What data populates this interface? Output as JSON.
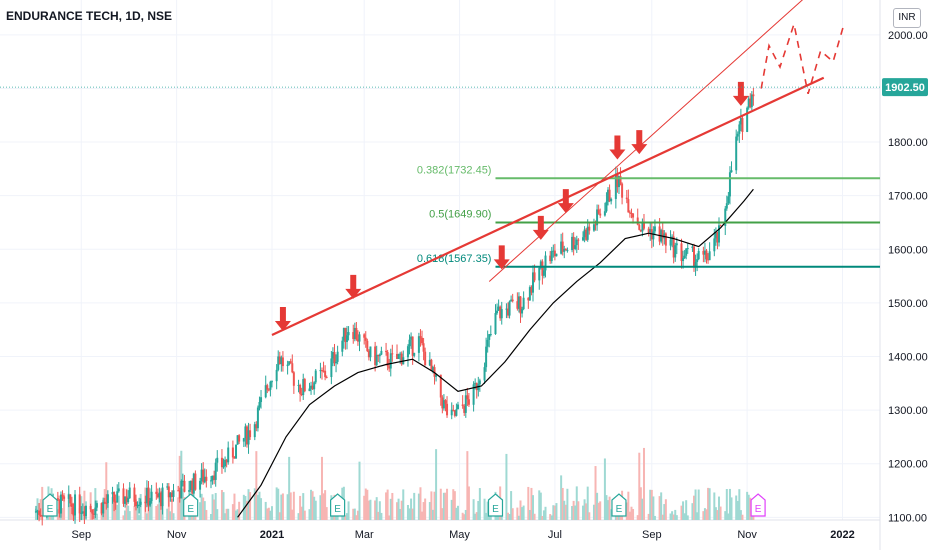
{
  "header": {
    "title": "ENDURANCE TECH, 1D, NSE",
    "currency": "INR"
  },
  "colors": {
    "up": "#26a69a",
    "down": "#ef5350",
    "arrow": "#e53935",
    "trendline": "#e53935",
    "fib_0382": "#66bb6a",
    "fib_05": "#43a047",
    "fib_0618": "#00897b",
    "moving_average": "#000000",
    "price_badge": "#26a69a"
  },
  "chart_data": {
    "type": "candlestick",
    "symbol": "ENDURANCE TECH",
    "interval": "1D",
    "exchange": "NSE",
    "last_price": "1902.50",
    "x_ticks": [
      "Sep",
      "Nov",
      "2021",
      "Mar",
      "May",
      "Jul",
      "Sep",
      "Nov",
      "2022"
    ],
    "y_ticks": [
      "2000.00",
      "1900.00",
      "1800.00",
      "1700.00",
      "1600.00",
      "1500.00",
      "1400.00",
      "1300.00",
      "1200.00",
      "1100.00"
    ],
    "ylim": [
      1095,
      2065
    ],
    "fib_levels": [
      {
        "label": "0.382(1732.45)",
        "ratio": 0.382,
        "price": 1732.45
      },
      {
        "label": "0.5(1649.90)",
        "ratio": 0.5,
        "price": 1649.9
      },
      {
        "label": "0.618(1567.35)",
        "ratio": 0.618,
        "price": 1567.35
      }
    ],
    "trendline": {
      "start": [
        "2021-01-01",
        1440
      ],
      "end": [
        "2021-12-20",
        1920
      ]
    },
    "channel_line": {
      "start": [
        "2021-05-20",
        1540
      ],
      "end": [
        "2021-12-12",
        2080
      ]
    },
    "arrow_markers": [
      {
        "date": "2021-01-08",
        "price": 1440
      },
      {
        "date": "2021-02-22",
        "price": 1500
      },
      {
        "date": "2021-05-28",
        "price": 1555
      },
      {
        "date": "2021-06-22",
        "price": 1610
      },
      {
        "date": "2021-07-08",
        "price": 1660
      },
      {
        "date": "2021-08-10",
        "price": 1760
      },
      {
        "date": "2021-08-24",
        "price": 1770
      },
      {
        "date": "2021-10-28",
        "price": 1860
      }
    ],
    "earnings_markers": [
      "2020-08-12",
      "2020-11-10",
      "2021-02-12",
      "2021-05-24",
      "2021-08-11",
      "2021-11-08"
    ],
    "projection_path": [
      [
        "2021-11-10",
        1900
      ],
      [
        "2021-11-15",
        1980
      ],
      [
        "2021-11-22",
        1940
      ],
      [
        "2021-12-01",
        2020
      ],
      [
        "2021-12-10",
        1890
      ],
      [
        "2021-12-18",
        1970
      ],
      [
        "2021-12-26",
        1950
      ],
      [
        "2022-01-02",
        2020
      ]
    ],
    "price_series": [
      [
        "2020-08-01",
        1110
      ],
      [
        "2020-08-20",
        1125
      ],
      [
        "2020-09-10",
        1120
      ],
      [
        "2020-10-01",
        1140
      ],
      [
        "2020-10-20",
        1135
      ],
      [
        "2020-11-10",
        1160
      ],
      [
        "2020-12-01",
        1200
      ],
      [
        "2020-12-20",
        1270
      ],
      [
        "2021-01-05",
        1400
      ],
      [
        "2021-01-20",
        1340
      ],
      [
        "2021-02-05",
        1370
      ],
      [
        "2021-02-20",
        1460
      ],
      [
        "2021-03-05",
        1400
      ],
      [
        "2021-03-20",
        1390
      ],
      [
        "2021-04-05",
        1430
      ],
      [
        "2021-04-25",
        1280
      ],
      [
        "2021-05-10",
        1330
      ],
      [
        "2021-05-25",
        1480
      ],
      [
        "2021-06-10",
        1500
      ],
      [
        "2021-06-25",
        1580
      ],
      [
        "2021-07-10",
        1610
      ],
      [
        "2021-07-25",
        1640
      ],
      [
        "2021-08-10",
        1730
      ],
      [
        "2021-08-25",
        1640
      ],
      [
        "2021-09-05",
        1630
      ],
      [
        "2021-09-20",
        1590
      ],
      [
        "2021-10-05",
        1580
      ],
      [
        "2021-10-15",
        1630
      ],
      [
        "2021-10-25",
        1800
      ],
      [
        "2021-11-05",
        1902.5
      ]
    ],
    "moving_average": [
      [
        "2020-12-10",
        1100
      ],
      [
        "2020-12-25",
        1160
      ],
      [
        "2021-01-10",
        1250
      ],
      [
        "2021-01-25",
        1310
      ],
      [
        "2021-02-10",
        1345
      ],
      [
        "2021-02-25",
        1370
      ],
      [
        "2021-03-15",
        1385
      ],
      [
        "2021-04-01",
        1395
      ],
      [
        "2021-04-15",
        1370
      ],
      [
        "2021-04-30",
        1335
      ],
      [
        "2021-05-15",
        1345
      ],
      [
        "2021-05-30",
        1390
      ],
      [
        "2021-06-15",
        1450
      ],
      [
        "2021-06-30",
        1500
      ],
      [
        "2021-07-15",
        1540
      ],
      [
        "2021-07-30",
        1575
      ],
      [
        "2021-08-15",
        1620
      ],
      [
        "2021-08-30",
        1630
      ],
      [
        "2021-09-15",
        1620
      ],
      [
        "2021-10-01",
        1605
      ],
      [
        "2021-10-15",
        1640
      ],
      [
        "2021-10-30",
        1690
      ],
      [
        "2021-11-05",
        1712
      ]
    ]
  }
}
